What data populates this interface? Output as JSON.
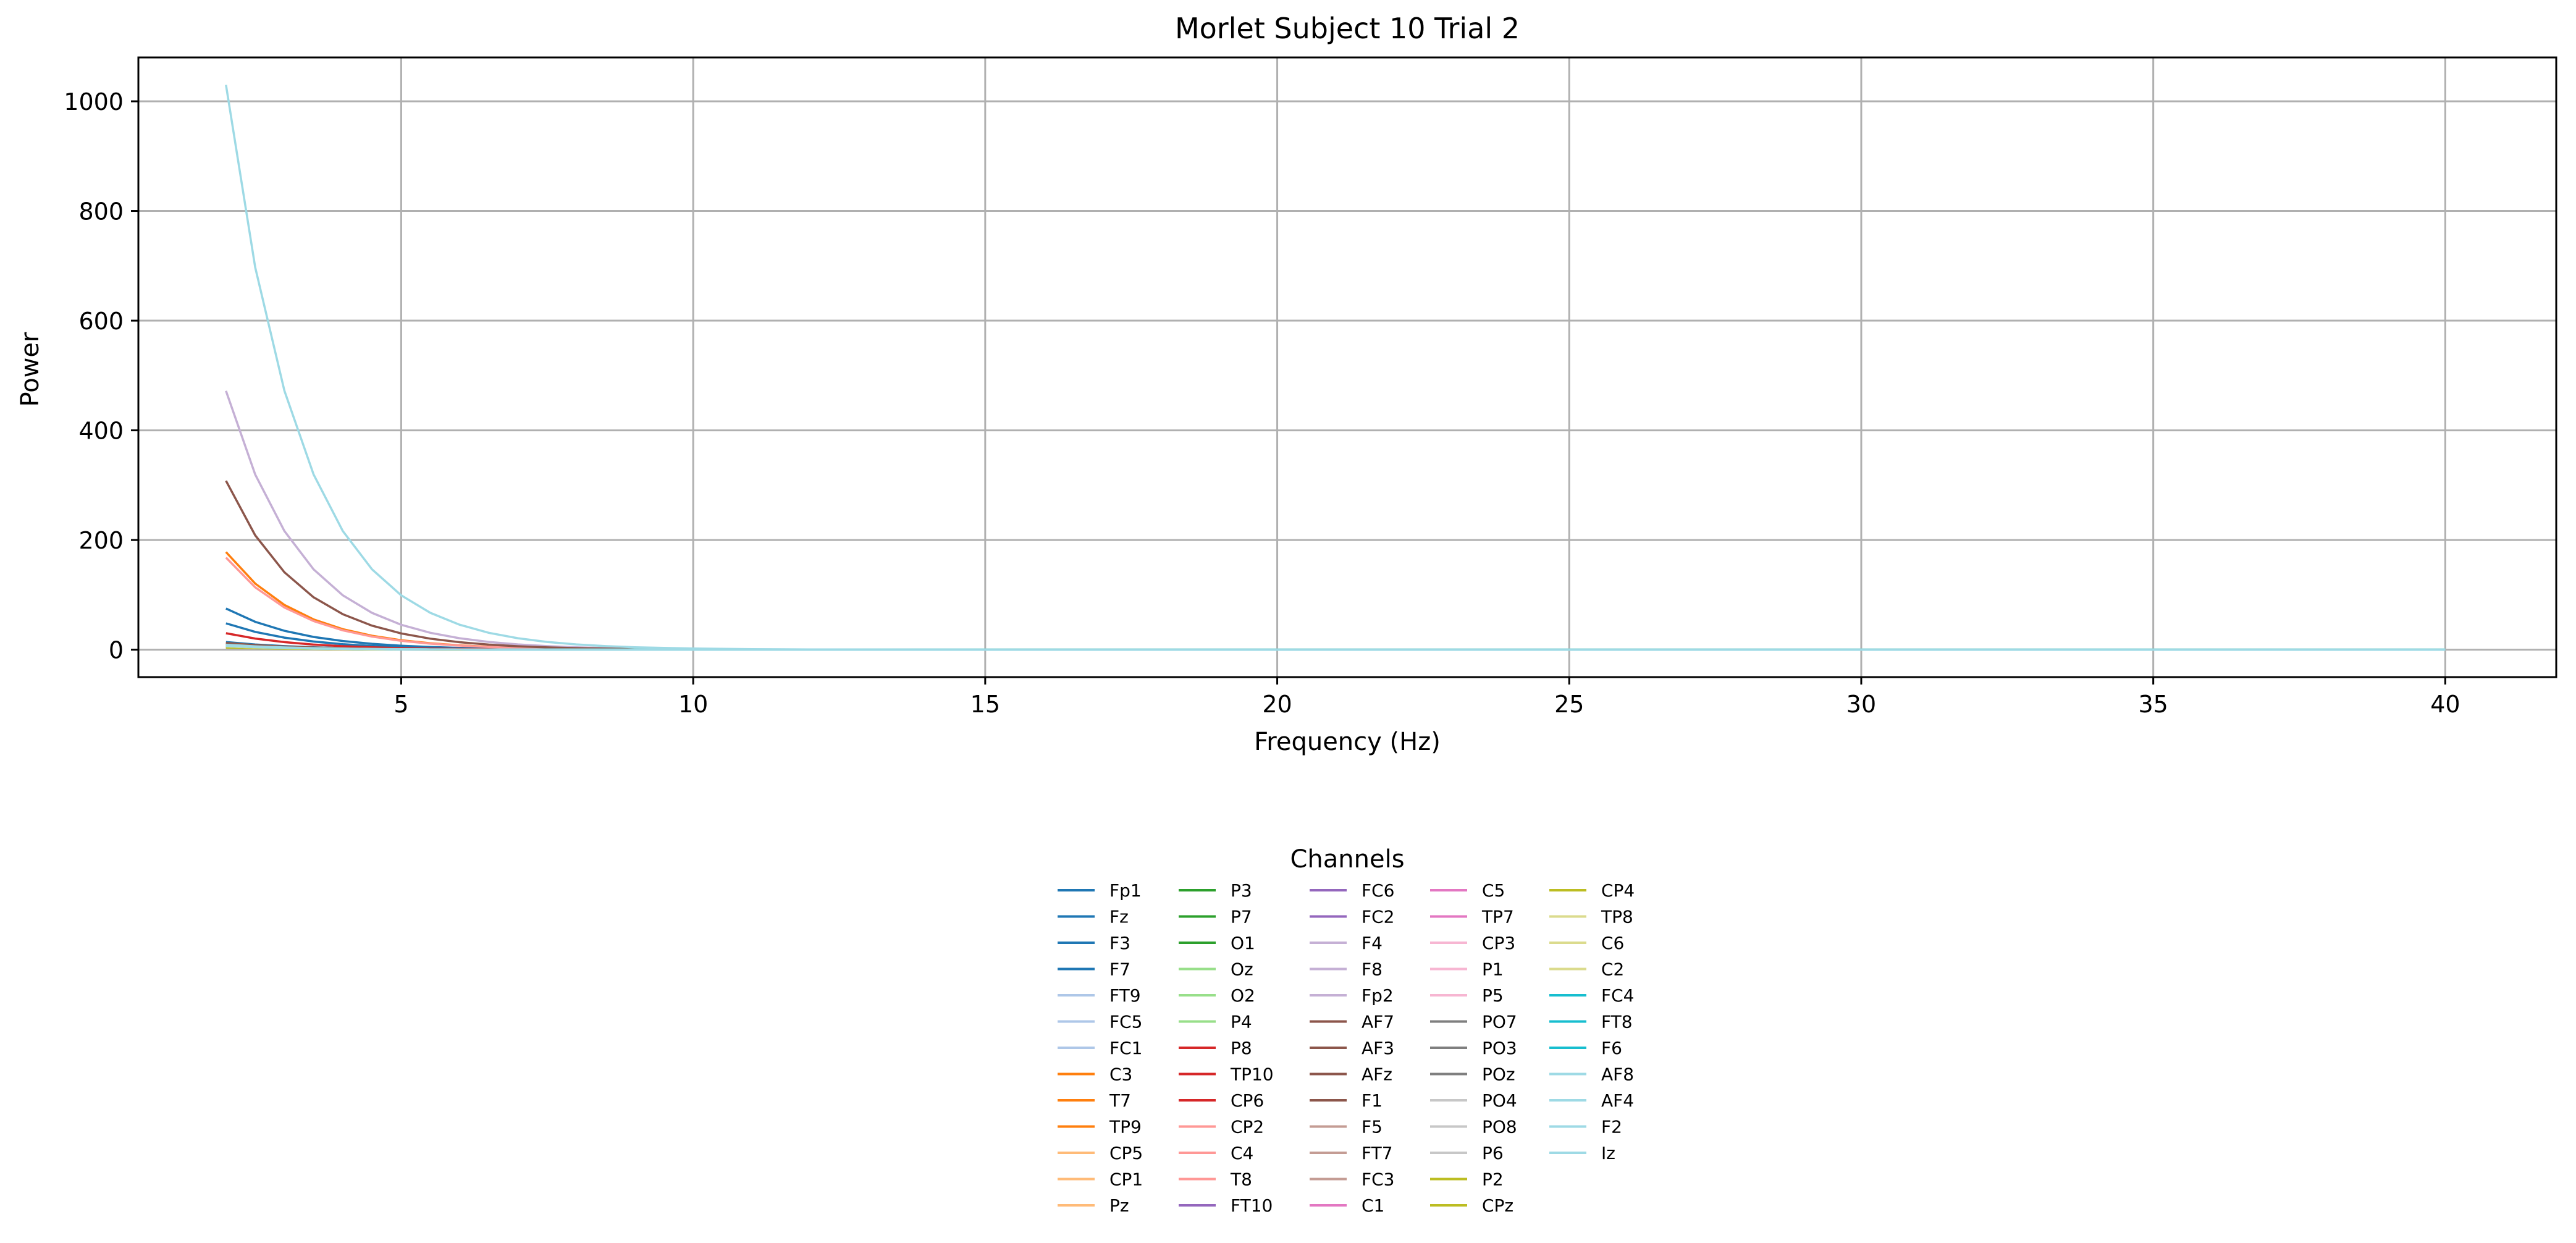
{
  "chart_data": {
    "type": "line",
    "title": "Morlet Subject 10 Trial 2",
    "xlabel": "Frequency (Hz)",
    "ylabel": "Power",
    "xlim": [
      0.5,
      41.9
    ],
    "ylim": [
      -50,
      1080
    ],
    "xticks": [
      5,
      10,
      15,
      20,
      25,
      30,
      35,
      40
    ],
    "yticks": [
      0,
      200,
      400,
      600,
      800,
      1000
    ],
    "grid": true,
    "legend": {
      "title": "Channels",
      "placement": "bottom-center",
      "columns": 5
    },
    "x": [
      2,
      2.5,
      3,
      3.5,
      4,
      4.5,
      5,
      5.5,
      6,
      6.5,
      7,
      7.5,
      8,
      8.5,
      9,
      10,
      11,
      12,
      14,
      16,
      18,
      20,
      22,
      25,
      28,
      30,
      32,
      35,
      38,
      40
    ],
    "series": [
      {
        "name": "Fp1",
        "color": "#1f77b4",
        "peak": 75
      },
      {
        "name": "Fz",
        "color": "#1f77b4",
        "peak": 48
      },
      {
        "name": "F3",
        "color": "#1f77b4",
        "peak": 14
      },
      {
        "name": "F7",
        "color": "#1f77b4",
        "peak": 9
      },
      {
        "name": "FT9",
        "color": "#aec7e8",
        "peak": 8
      },
      {
        "name": "FC5",
        "color": "#aec7e8",
        "peak": 7
      },
      {
        "name": "FC1",
        "color": "#aec7e8",
        "peak": 9
      },
      {
        "name": "C3",
        "color": "#ff7f0e",
        "peak": 178
      },
      {
        "name": "T7",
        "color": "#ff7f0e",
        "peak": 12
      },
      {
        "name": "TP9",
        "color": "#ff7f0e",
        "peak": 10
      },
      {
        "name": "CP5",
        "color": "#ffbb78",
        "peak": 8
      },
      {
        "name": "CP1",
        "color": "#ffbb78",
        "peak": 7
      },
      {
        "name": "Pz",
        "color": "#ffbb78",
        "peak": 9
      },
      {
        "name": "P3",
        "color": "#2ca02c",
        "peak": 6
      },
      {
        "name": "P7",
        "color": "#2ca02c",
        "peak": 5
      },
      {
        "name": "O1",
        "color": "#2ca02c",
        "peak": 6
      },
      {
        "name": "Oz",
        "color": "#98df8a",
        "peak": 5
      },
      {
        "name": "O2",
        "color": "#98df8a",
        "peak": 6
      },
      {
        "name": "P4",
        "color": "#98df8a",
        "peak": 5
      },
      {
        "name": "P8",
        "color": "#d62728",
        "peak": 30
      },
      {
        "name": "TP10",
        "color": "#d62728",
        "peak": 10
      },
      {
        "name": "CP6",
        "color": "#d62728",
        "peak": 7
      },
      {
        "name": "CP2",
        "color": "#ff9896",
        "peak": 168
      },
      {
        "name": "C4",
        "color": "#ff9896",
        "peak": 11
      },
      {
        "name": "T8",
        "color": "#ff9896",
        "peak": 9
      },
      {
        "name": "FT10",
        "color": "#9467bd",
        "peak": 8
      },
      {
        "name": "FC6",
        "color": "#9467bd",
        "peak": 7
      },
      {
        "name": "FC2",
        "color": "#9467bd",
        "peak": 8
      },
      {
        "name": "F4",
        "color": "#c5b0d5",
        "peak": 472
      },
      {
        "name": "F8",
        "color": "#c5b0d5",
        "peak": 9
      },
      {
        "name": "Fp2",
        "color": "#c5b0d5",
        "peak": 10
      },
      {
        "name": "AF7",
        "color": "#8c564b",
        "peak": 308
      },
      {
        "name": "AF3",
        "color": "#8c564b",
        "peak": 12
      },
      {
        "name": "AFz",
        "color": "#8c564b",
        "peak": 10
      },
      {
        "name": "F1",
        "color": "#8c564b",
        "peak": 9
      },
      {
        "name": "F5",
        "color": "#c49c94",
        "peak": 8
      },
      {
        "name": "FT7",
        "color": "#c49c94",
        "peak": 7
      },
      {
        "name": "FC3",
        "color": "#c49c94",
        "peak": 6
      },
      {
        "name": "C1",
        "color": "#e377c2",
        "peak": 6
      },
      {
        "name": "C5",
        "color": "#e377c2",
        "peak": 5
      },
      {
        "name": "TP7",
        "color": "#e377c2",
        "peak": 5
      },
      {
        "name": "CP3",
        "color": "#f7b6d2",
        "peak": 6
      },
      {
        "name": "P1",
        "color": "#f7b6d2",
        "peak": 5
      },
      {
        "name": "P5",
        "color": "#f7b6d2",
        "peak": 5
      },
      {
        "name": "PO7",
        "color": "#7f7f7f",
        "peak": 5
      },
      {
        "name": "PO3",
        "color": "#7f7f7f",
        "peak": 4
      },
      {
        "name": "POz",
        "color": "#7f7f7f",
        "peak": 4
      },
      {
        "name": "PO4",
        "color": "#c7c7c7",
        "peak": 4
      },
      {
        "name": "PO8",
        "color": "#c7c7c7",
        "peak": 5
      },
      {
        "name": "P6",
        "color": "#c7c7c7",
        "peak": 4
      },
      {
        "name": "P2",
        "color": "#bcbd22",
        "peak": 4
      },
      {
        "name": "CPz",
        "color": "#bcbd22",
        "peak": 5
      },
      {
        "name": "CP4",
        "color": "#bcbd22",
        "peak": 5
      },
      {
        "name": "TP8",
        "color": "#dbdb8d",
        "peak": 6
      },
      {
        "name": "C6",
        "color": "#dbdb8d",
        "peak": 6
      },
      {
        "name": "C2",
        "color": "#dbdb8d",
        "peak": 7
      },
      {
        "name": "FC4",
        "color": "#17becf",
        "peak": 8
      },
      {
        "name": "FT8",
        "color": "#17becf",
        "peak": 7
      },
      {
        "name": "F6",
        "color": "#17becf",
        "peak": 8
      },
      {
        "name": "AF8",
        "color": "#9edae5",
        "peak": 1030
      },
      {
        "name": "AF4",
        "color": "#9edae5",
        "peak": 9
      },
      {
        "name": "F2",
        "color": "#9edae5",
        "peak": 8
      },
      {
        "name": "Iz",
        "color": "#9edae5",
        "peak": 7
      }
    ]
  }
}
